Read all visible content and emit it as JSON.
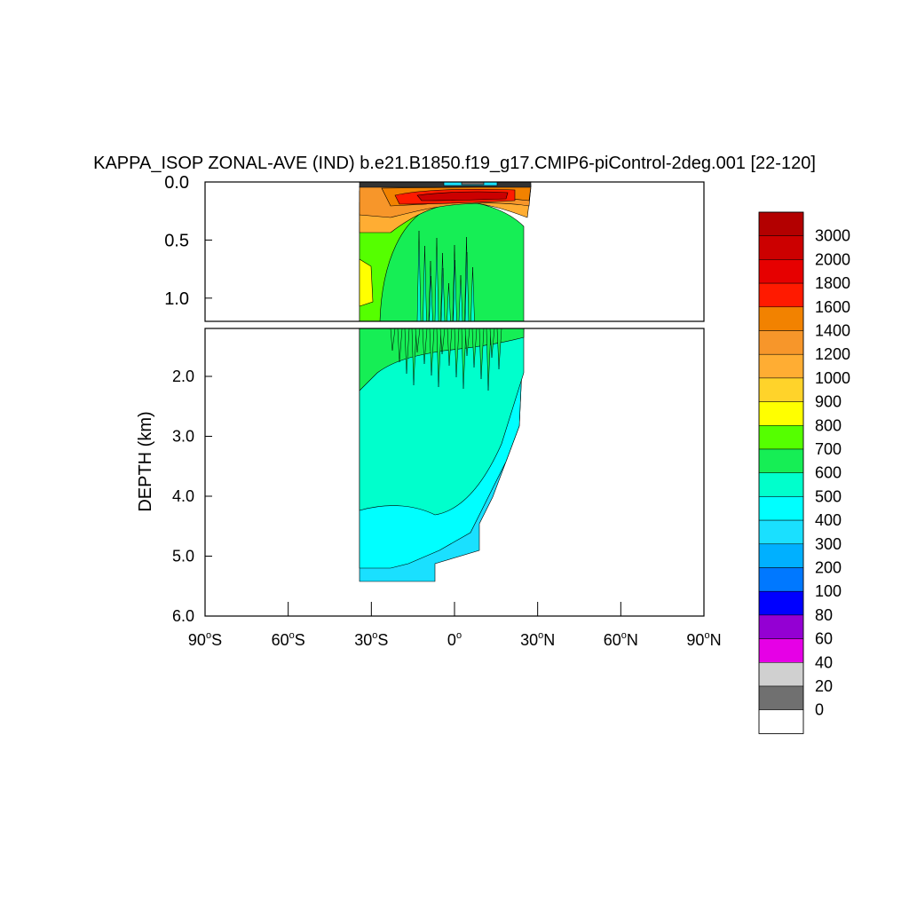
{
  "chart_data": {
    "type": "heatmap",
    "title": "KAPPA_ISOP ZONAL-AVE (IND) b.e21.B1850.f19_g17.CMIP6-piControl-2deg.001 [22-120]",
    "ylabel": "DEPTH (km)",
    "x_range": [
      -90,
      90
    ],
    "x_ticks": [
      {
        "value": -90,
        "label": "90",
        "hemi": "S"
      },
      {
        "value": -60,
        "label": "60",
        "hemi": "S"
      },
      {
        "value": -30,
        "label": "30",
        "hemi": "S"
      },
      {
        "value": 0,
        "label": "0",
        "hemi": ""
      },
      {
        "value": 30,
        "label": "30",
        "hemi": "N"
      },
      {
        "value": 60,
        "label": "60",
        "hemi": "N"
      },
      {
        "value": 90,
        "label": "90",
        "hemi": "N"
      }
    ],
    "upper_panel": {
      "y_range": [
        0.0,
        1.2
      ],
      "y_ticks": [
        {
          "value": 0.0,
          "label": "0.0"
        },
        {
          "value": 0.5,
          "label": "0.5"
        },
        {
          "value": 1.0,
          "label": "1.0"
        }
      ]
    },
    "lower_panel": {
      "y_range": [
        1.2,
        6.0
      ],
      "y_ticks": [
        {
          "value": 2.0,
          "label": "2.0"
        },
        {
          "value": 3.0,
          "label": "3.0"
        },
        {
          "value": 4.0,
          "label": "4.0"
        },
        {
          "value": 5.0,
          "label": "5.0"
        },
        {
          "value": 6.0,
          "label": "6.0"
        }
      ]
    },
    "data_extent": {
      "lat_min": -34,
      "lat_max": 26,
      "max_depth_km": 5.4
    },
    "colorbar": {
      "levels": [
        "3000",
        "2000",
        "1800",
        "1600",
        "1400",
        "1200",
        "1000",
        "900",
        "800",
        "700",
        "600",
        "500",
        "400",
        "300",
        "200",
        "100",
        "80",
        "60",
        "40",
        "20",
        "0"
      ],
      "colors": [
        "#b30000",
        "#cc0000",
        "#e60000",
        "#ff1a00",
        "#f28200",
        "#f7962a",
        "#ffad33",
        "#ffd32a",
        "#ffff00",
        "#55ff00",
        "#16ee55",
        "#00ffcc",
        "#00ffff",
        "#1ae0ff",
        "#00b0ff",
        "#0078ff",
        "#0000ff",
        "#9400d3",
        "#e600e6",
        "#d0d0d0",
        "#707070",
        "#ffffff"
      ]
    }
  }
}
